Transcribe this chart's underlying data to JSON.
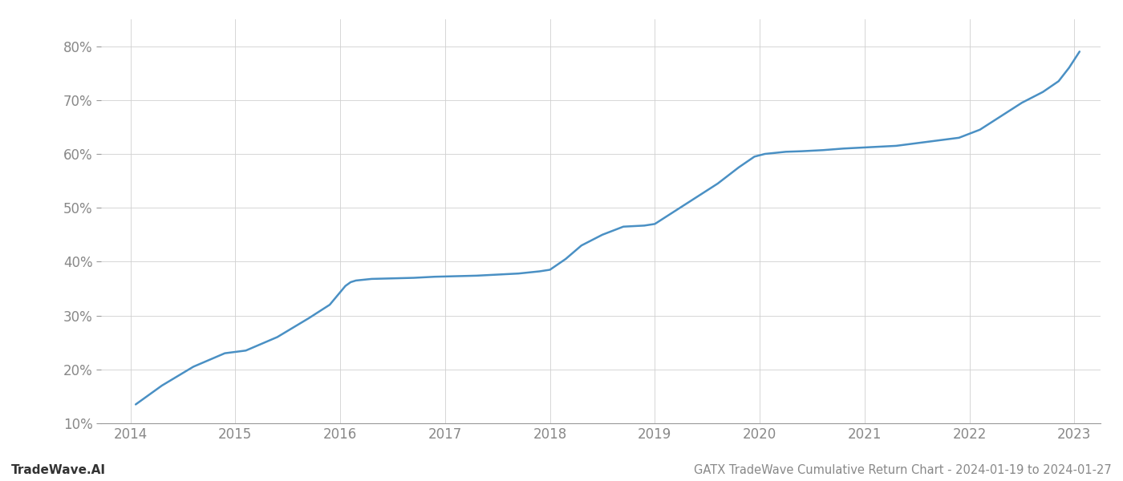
{
  "title": "GATX TradeWave Cumulative Return Chart - 2024-01-19 to 2024-01-27",
  "watermark": "TradeWave.AI",
  "line_color": "#4a90c4",
  "background_color": "#ffffff",
  "grid_color": "#d0d0d0",
  "x_years": [
    2014,
    2015,
    2016,
    2017,
    2018,
    2019,
    2020,
    2021,
    2022,
    2023
  ],
  "data_x": [
    2014.05,
    2014.3,
    2014.6,
    2014.9,
    2015.1,
    2015.4,
    2015.7,
    2015.9,
    2016.05,
    2016.1,
    2016.15,
    2016.3,
    2016.5,
    2016.7,
    2016.9,
    2017.1,
    2017.3,
    2017.5,
    2017.7,
    2017.9,
    2018.0,
    2018.15,
    2018.3,
    2018.5,
    2018.7,
    2018.9,
    2019.0,
    2019.2,
    2019.4,
    2019.6,
    2019.8,
    2019.95,
    2020.05,
    2020.15,
    2020.25,
    2020.4,
    2020.6,
    2020.8,
    2021.0,
    2021.3,
    2021.5,
    2021.7,
    2021.9,
    2022.1,
    2022.3,
    2022.5,
    2022.7,
    2022.85,
    2022.95,
    2023.05
  ],
  "data_y": [
    13.5,
    17.0,
    20.5,
    23.0,
    23.5,
    26.0,
    29.5,
    32.0,
    35.5,
    36.2,
    36.5,
    36.8,
    36.9,
    37.0,
    37.2,
    37.3,
    37.4,
    37.6,
    37.8,
    38.2,
    38.5,
    40.5,
    43.0,
    45.0,
    46.5,
    46.7,
    47.0,
    49.5,
    52.0,
    54.5,
    57.5,
    59.5,
    60.0,
    60.2,
    60.4,
    60.5,
    60.7,
    61.0,
    61.2,
    61.5,
    62.0,
    62.5,
    63.0,
    64.5,
    67.0,
    69.5,
    71.5,
    73.5,
    76.0,
    79.0
  ],
  "ylim": [
    10,
    85
  ],
  "yticks": [
    10,
    20,
    30,
    40,
    50,
    60,
    70,
    80
  ],
  "xlim": [
    2013.72,
    2023.25
  ],
  "spine_color": "#999999",
  "title_fontsize": 10.5,
  "watermark_fontsize": 11,
  "tick_fontsize": 12,
  "tick_color": "#888888",
  "watermark_color": "#333333",
  "line_width": 1.8
}
